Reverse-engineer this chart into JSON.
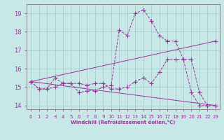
{
  "background_color": "#c8e8e8",
  "grid_color": "#a0c8c8",
  "line_color": "#993399",
  "xlabel": "Windchill (Refroidissement éolien,°C)",
  "xlim": [
    -0.5,
    23.5
  ],
  "ylim": [
    13.8,
    19.5
  ],
  "yticks": [
    14,
    15,
    16,
    17,
    18,
    19
  ],
  "xticks": [
    0,
    1,
    2,
    3,
    4,
    5,
    6,
    7,
    8,
    9,
    10,
    11,
    12,
    13,
    14,
    15,
    16,
    17,
    18,
    19,
    20,
    21,
    22,
    23
  ],
  "line1_x": [
    0,
    1,
    2,
    3,
    4,
    5,
    6,
    7,
    8,
    9,
    10,
    11,
    12,
    13,
    14,
    15,
    16,
    17,
    18,
    19,
    20,
    21,
    22
  ],
  "line1_y": [
    15.3,
    14.9,
    14.9,
    15.5,
    15.2,
    15.2,
    14.7,
    14.8,
    14.8,
    15.0,
    15.1,
    18.1,
    17.8,
    19.0,
    19.2,
    18.6,
    17.8,
    17.5,
    17.5,
    16.5,
    14.7,
    14.0,
    14.0
  ],
  "line2_x": [
    0,
    1,
    2,
    3,
    4,
    5,
    6,
    7,
    8,
    9,
    10,
    11,
    12,
    13,
    14,
    15,
    16,
    17,
    18,
    19,
    20,
    21,
    22,
    23
  ],
  "line2_y": [
    15.3,
    14.9,
    14.9,
    15.0,
    15.2,
    15.2,
    15.2,
    15.1,
    15.2,
    15.2,
    14.9,
    14.9,
    15.0,
    15.3,
    15.5,
    15.2,
    15.8,
    16.5,
    16.5,
    16.5,
    16.5,
    14.7,
    14.0,
    14.0
  ],
  "line3_x": [
    0,
    23
  ],
  "line3_y": [
    15.3,
    14.0
  ],
  "line4_x": [
    0,
    23
  ],
  "line4_y": [
    15.3,
    17.5
  ]
}
